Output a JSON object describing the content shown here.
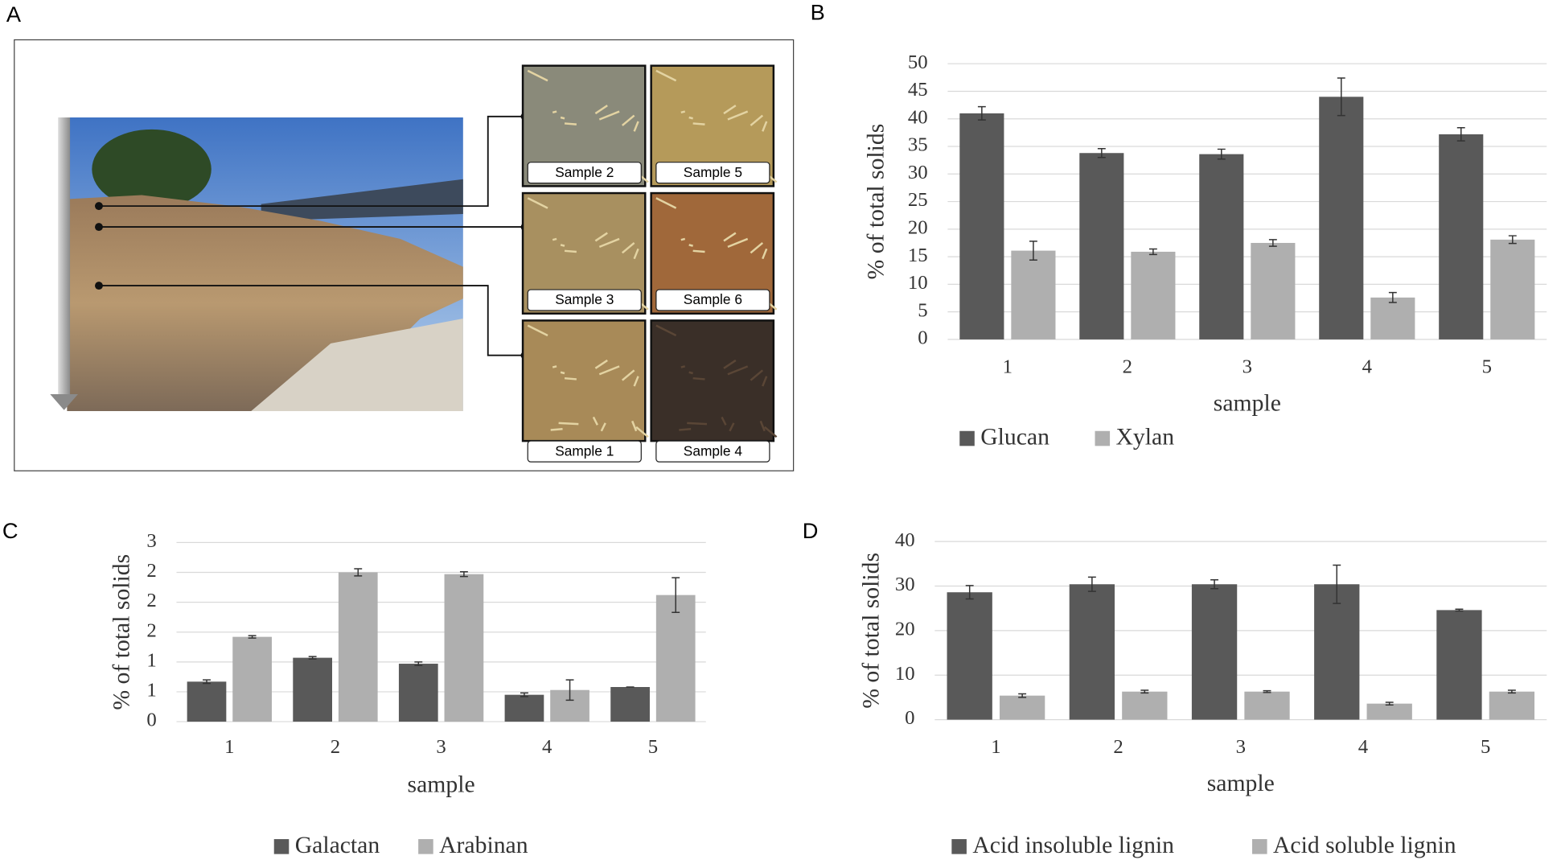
{
  "panel_a": {
    "label": "A",
    "samples": [
      "Sample 2",
      "Sample 5",
      "Sample 3",
      "Sample 6",
      "Sample 1",
      "Sample 4"
    ]
  },
  "chart_data": [
    {
      "type": "bar",
      "label": "B",
      "xlabel": "sample",
      "ylabel": "% of total solids",
      "categories": [
        "1",
        "2",
        "3",
        "4",
        "5"
      ],
      "series": [
        {
          "name": "Glucan",
          "color": "#595959",
          "values": [
            41.0,
            33.8,
            33.6,
            44.0,
            37.2
          ],
          "errors": [
            1.2,
            0.8,
            0.9,
            3.4,
            1.2
          ]
        },
        {
          "name": "Xylan",
          "color": "#afafaf",
          "values": [
            16.1,
            15.9,
            17.5,
            7.6,
            18.1
          ],
          "errors": [
            1.7,
            0.5,
            0.6,
            0.9,
            0.7
          ]
        }
      ],
      "ylim": [
        0,
        50
      ],
      "yticks": [
        0,
        5,
        10,
        15,
        20,
        25,
        30,
        35,
        40,
        45,
        50
      ],
      "grid": true,
      "legend": "bottom"
    },
    {
      "type": "bar",
      "label": "C",
      "xlabel": "sample",
      "ylabel": "% of total solids",
      "categories": [
        "1",
        "2",
        "3",
        "4",
        "5"
      ],
      "series": [
        {
          "name": "Galactan",
          "color": "#595959",
          "values": [
            0.67,
            1.07,
            0.97,
            0.45,
            0.58
          ],
          "errors": [
            0.03,
            0.02,
            0.03,
            0.03,
            0
          ]
        },
        {
          "name": "Arabinan",
          "color": "#afafaf",
          "values": [
            1.42,
            2.5,
            2.47,
            0.53,
            2.12
          ],
          "errors": [
            0.02,
            0.06,
            0.04,
            0.17,
            0.29
          ]
        }
      ],
      "ylim": [
        0,
        3
      ],
      "yticks": [
        0,
        {
          "value": 0.5,
          "label": "1"
        },
        1,
        {
          "value": 1.5,
          "label": "2"
        },
        2,
        {
          "value": 2.5,
          "label": "2"
        },
        3
      ],
      "grid": true,
      "legend": "bottom"
    },
    {
      "type": "bar",
      "label": "D",
      "xlabel": "sample",
      "ylabel": "% of total solids",
      "categories": [
        "1",
        "2",
        "3",
        "4",
        "5"
      ],
      "series": [
        {
          "name": "Acid insoluble lignin",
          "color": "#595959",
          "values": [
            28.6,
            30.4,
            30.4,
            30.4,
            24.6
          ],
          "errors": [
            1.5,
            1.6,
            1.0,
            4.3,
            0.2
          ]
        },
        {
          "name": "Acid soluble lignin",
          "color": "#afafaf",
          "values": [
            5.4,
            6.3,
            6.3,
            3.6,
            6.3
          ],
          "errors": [
            0.4,
            0.3,
            0.2,
            0.3,
            0.3
          ]
        }
      ],
      "ylim": [
        0,
        40
      ],
      "yticks": [
        0,
        10,
        20,
        30,
        40
      ],
      "grid": true,
      "legend": "bottom"
    }
  ]
}
